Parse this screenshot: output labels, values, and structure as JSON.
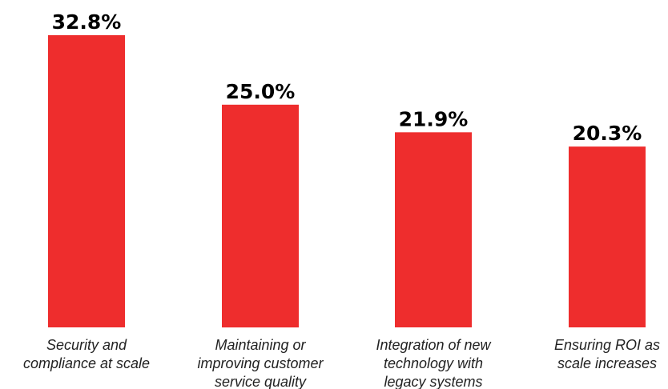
{
  "chart_data": {
    "type": "bar",
    "categories": [
      [
        "Security and",
        "compliance at scale"
      ],
      [
        "Maintaining or",
        "improving customer",
        "service quality"
      ],
      [
        "Integration of new",
        "technology with",
        "legacy systems"
      ],
      [
        "Ensuring ROI as",
        "scale increases"
      ]
    ],
    "values": [
      32.8,
      25.0,
      21.9,
      20.3
    ],
    "value_labels": [
      "32.8%",
      "25.0%",
      "21.9%",
      "20.3%"
    ],
    "bar_color": "#ee2d2d",
    "grid": false,
    "axes_visible": false,
    "legend": "none"
  }
}
